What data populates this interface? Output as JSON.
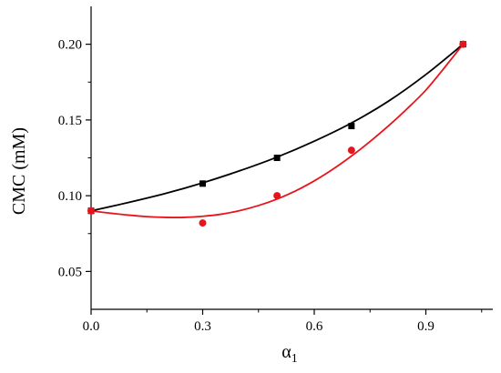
{
  "chart_data": {
    "type": "scatter",
    "title": "",
    "xlabel": "α",
    "xlabel_subscript": "1",
    "ylabel": "CMC (mM)",
    "xlim": [
      0.0,
      1.08
    ],
    "ylim": [
      0.025,
      0.225
    ],
    "x_ticks": [
      0.0,
      0.3,
      0.6,
      0.9
    ],
    "x_tick_labels": [
      "0.0",
      "0.3",
      "0.6",
      "0.9"
    ],
    "x_minor_ticks": [
      0.15,
      0.45,
      0.75,
      1.05
    ],
    "y_ticks": [
      0.05,
      0.1,
      0.15,
      0.2
    ],
    "y_tick_labels": [
      "0.05",
      "0.10",
      "0.15",
      "0.20"
    ],
    "y_minor_ticks": [
      0.075,
      0.125,
      0.175
    ],
    "grid": false,
    "legend": "none",
    "series": [
      {
        "color": "#000000",
        "marker": "square",
        "points": {
          "x": [
            0.0,
            0.3,
            0.5,
            0.7,
            1.0
          ],
          "y": [
            0.09,
            0.108,
            0.125,
            0.146,
            0.2
          ]
        },
        "curve": {
          "x": [
            0.0,
            0.1,
            0.2,
            0.3,
            0.4,
            0.5,
            0.6,
            0.7,
            0.8,
            0.9,
            1.0
          ],
          "y": [
            0.09,
            0.0955,
            0.1015,
            0.1085,
            0.1165,
            0.1255,
            0.136,
            0.148,
            0.1625,
            0.18,
            0.2
          ]
        }
      },
      {
        "color": "#e8141b",
        "marker": "circle",
        "points": {
          "x": [
            0.0,
            0.3,
            0.5,
            0.7,
            1.0
          ],
          "y": [
            0.09,
            0.082,
            0.1,
            0.13,
            0.2
          ]
        },
        "curve": {
          "x": [
            0.0,
            0.05,
            0.1,
            0.15,
            0.2,
            0.25,
            0.3,
            0.35,
            0.4,
            0.45,
            0.5,
            0.55,
            0.6,
            0.65,
            0.7,
            0.75,
            0.8,
            0.85,
            0.9,
            0.95,
            1.0
          ],
          "y": [
            0.09,
            0.0885,
            0.0872,
            0.0862,
            0.0857,
            0.0857,
            0.0864,
            0.0878,
            0.0902,
            0.0935,
            0.0978,
            0.1032,
            0.1098,
            0.1175,
            0.1262,
            0.1358,
            0.1462,
            0.1575,
            0.1697,
            0.1845,
            0.2
          ]
        }
      }
    ]
  }
}
